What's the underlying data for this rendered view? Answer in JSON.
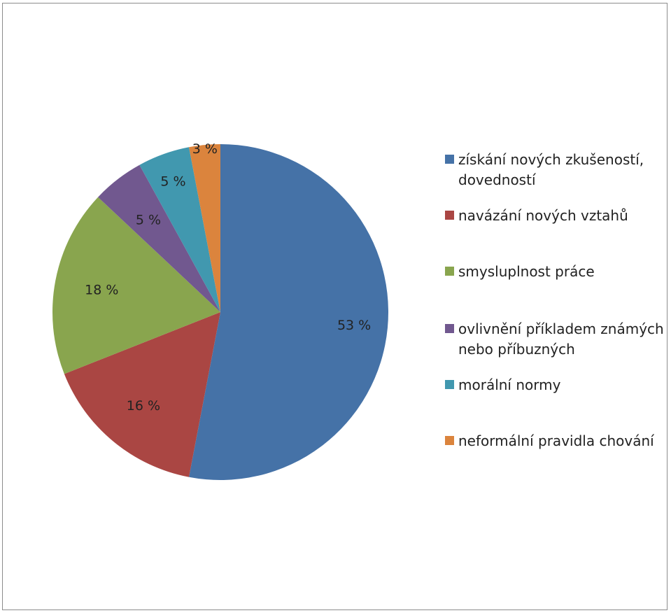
{
  "chart_data": {
    "type": "pie",
    "title": "",
    "legend_position": "right",
    "slices": [
      {
        "label": "získání nových zkušeností, dovedností",
        "value": 53,
        "value_label": "53 %",
        "color": "#4572a7"
      },
      {
        "label": "navázání nových vztahů",
        "value": 16,
        "value_label": "16 %",
        "color": "#aa4643"
      },
      {
        "label": "smysluplnost práce",
        "value": 18,
        "value_label": "18 %",
        "color": "#89a54e"
      },
      {
        "label": "ovlivnění příkladem známých nebo příbuzných",
        "value": 5,
        "value_label": "5 %",
        "color": "#71588f"
      },
      {
        "label": "morální normy",
        "value": 5,
        "value_label": "5 %",
        "color": "#4198af"
      },
      {
        "label": "neformální pravidla chování",
        "value": 3,
        "value_label": "3 %",
        "color": "#db843d"
      }
    ]
  }
}
